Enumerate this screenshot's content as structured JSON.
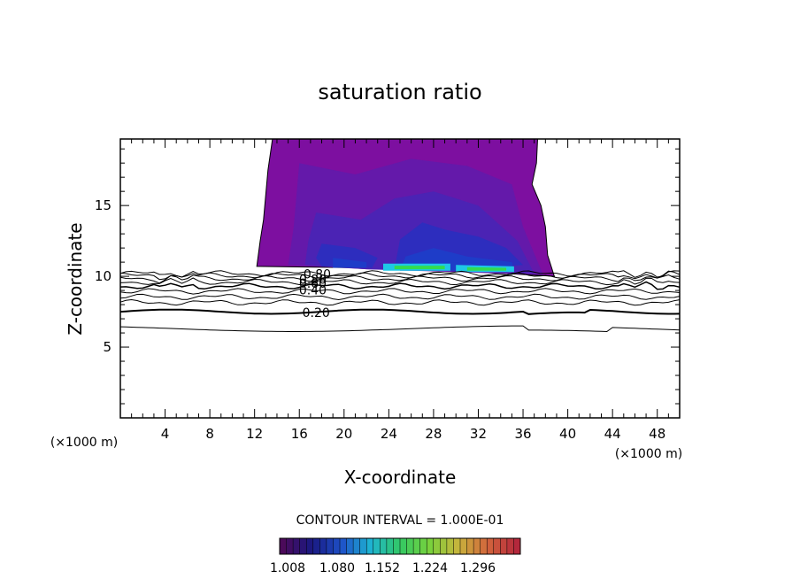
{
  "chart_data": {
    "type": "contour",
    "title": "saturation ratio",
    "xlabel": "X-coordinate",
    "ylabel": "Z-coordinate",
    "x_unit_left": "(×1000 m)",
    "x_unit_right": "(×1000 m)",
    "xlim": [
      0,
      50
    ],
    "ylim": [
      0,
      19.7
    ],
    "x_ticks": [
      4,
      8,
      12,
      16,
      20,
      24,
      28,
      32,
      36,
      40,
      44,
      48
    ],
    "y_ticks": [
      5,
      10,
      15
    ],
    "contour_interval_text": "CONTOUR INTERVAL = 1.000E-01",
    "contour_line_labels": [
      "0.20",
      "0.40",
      "0.60",
      "0.80",
      "0.80"
    ],
    "colorbar": {
      "tick_labels": [
        "1.008",
        "1.080",
        "1.152",
        "1.224",
        "1.296"
      ],
      "colors": [
        "#4b0a5a",
        "#191982",
        "#1e50c8",
        "#1eb4d2",
        "#32c864",
        "#78d23c",
        "#c8b43c",
        "#d2643c",
        "#b4283c"
      ]
    },
    "fill_colors": {
      "outer": "#7d0fa0",
      "mid": "#6419aa",
      "inner": "#4b23b4",
      "deep": "#2d2dbe",
      "deeper": "#1e3cc8",
      "cyan": "#1ec8e6",
      "green": "#32dc50"
    }
  }
}
